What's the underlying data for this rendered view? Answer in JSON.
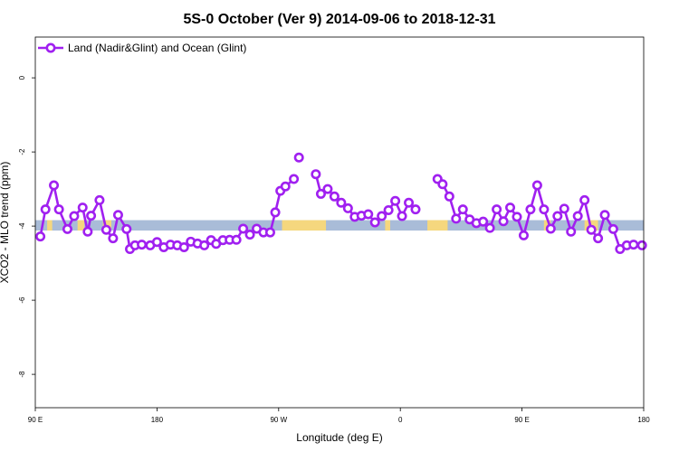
{
  "chart_data": {
    "type": "line",
    "title": "5S-0 October (Ver 9)   2014-09-06 to 2018-12-31",
    "xlabel": "Longitude (deg E)",
    "ylabel": "XCO2 - MLO trend (ppm)",
    "xlim": [
      90,
      450
    ],
    "ylim": [
      -8.9,
      1.1
    ],
    "x_ticks": [
      {
        "value": 90,
        "label": "90 E"
      },
      {
        "value": 162,
        "label": "180"
      },
      {
        "value": 234,
        "label": "90 W"
      },
      {
        "value": 306,
        "label": "0"
      },
      {
        "value": 378,
        "label": "90 E"
      },
      {
        "value": 450,
        "label": "180"
      }
    ],
    "y_ticks": [
      {
        "value": 0,
        "label": "0"
      },
      {
        "value": -2,
        "label": "-2"
      },
      {
        "value": -4,
        "label": "-4"
      },
      {
        "value": -6,
        "label": "-6"
      },
      {
        "value": -8,
        "label": "-8"
      }
    ],
    "legend": {
      "position": "top-left"
    },
    "series": [
      {
        "name": "Land (Nadir&Glint) and Ocean (Glint)",
        "color": "#a020f0",
        "points": [
          [
            93,
            -4.28
          ],
          [
            96,
            -3.55
          ],
          [
            101,
            -2.9
          ],
          [
            104,
            -3.55
          ],
          [
            109,
            -4.08
          ],
          [
            113,
            -3.73
          ],
          [
            118,
            -3.5
          ],
          [
            121,
            -4.15
          ],
          [
            123,
            -3.72
          ],
          [
            128,
            -3.3
          ],
          [
            132,
            -4.1
          ],
          [
            136,
            -4.33
          ],
          [
            139,
            -3.7
          ],
          [
            144,
            -4.08
          ],
          [
            146,
            -4.62
          ],
          [
            149,
            -4.52
          ],
          [
            153,
            -4.5
          ],
          [
            158,
            -4.52
          ],
          [
            162,
            -4.43
          ],
          [
            166,
            -4.57
          ],
          [
            170,
            -4.5
          ],
          [
            174,
            -4.52
          ],
          [
            178,
            -4.57
          ],
          [
            182,
            -4.42
          ],
          [
            186,
            -4.47
          ],
          [
            190,
            -4.52
          ],
          [
            194,
            -4.38
          ],
          [
            197,
            -4.48
          ],
          [
            201,
            -4.38
          ],
          [
            205,
            -4.37
          ],
          [
            209,
            -4.37
          ],
          [
            213,
            -4.07
          ],
          [
            217,
            -4.23
          ],
          [
            221,
            -4.07
          ],
          [
            225,
            -4.17
          ],
          [
            229,
            -4.17
          ],
          [
            232,
            -3.63
          ],
          [
            235,
            -3.05
          ],
          [
            238,
            -2.93
          ],
          [
            243,
            -2.73
          ],
          null,
          [
            246,
            -2.15
          ],
          null,
          [
            256,
            -2.6
          ],
          [
            259,
            -3.13
          ],
          [
            263,
            -3.0
          ],
          [
            267,
            -3.2
          ],
          [
            271,
            -3.37
          ],
          [
            275,
            -3.52
          ],
          [
            279,
            -3.75
          ],
          [
            283,
            -3.72
          ],
          [
            287,
            -3.68
          ],
          [
            291,
            -3.9
          ],
          [
            295,
            -3.73
          ],
          [
            299,
            -3.57
          ],
          [
            303,
            -3.32
          ],
          [
            307,
            -3.73
          ],
          [
            311,
            -3.37
          ],
          [
            315,
            -3.55
          ],
          null,
          [
            328,
            -2.73
          ],
          [
            331,
            -2.87
          ],
          [
            335,
            -3.2
          ],
          [
            339,
            -3.8
          ],
          [
            343,
            -3.55
          ],
          [
            347,
            -3.82
          ],
          [
            351,
            -3.92
          ],
          [
            355,
            -3.88
          ],
          [
            359,
            -4.05
          ],
          [
            363,
            -3.55
          ],
          [
            367,
            -3.87
          ],
          [
            371,
            -3.5
          ],
          [
            375,
            -3.75
          ],
          [
            379,
            -4.25
          ],
          [
            383,
            -3.55
          ],
          [
            387,
            -2.9
          ],
          [
            391,
            -3.55
          ],
          [
            395,
            -4.07
          ],
          [
            399,
            -3.73
          ],
          [
            403,
            -3.53
          ],
          [
            407,
            -4.15
          ],
          [
            411,
            -3.73
          ],
          [
            415,
            -3.3
          ],
          [
            419,
            -4.1
          ],
          [
            423,
            -4.33
          ],
          [
            427,
            -3.7
          ],
          [
            432,
            -4.08
          ],
          [
            436,
            -4.62
          ],
          [
            440,
            -4.52
          ],
          [
            444,
            -4.5
          ],
          [
            449,
            -4.52
          ]
        ]
      }
    ],
    "bands": {
      "y_center": -3.98,
      "y_half_height": 0.14,
      "ocean_color": "#a9bcd8",
      "land_color": "#f5d77e",
      "land_segments": [
        [
          97,
          100
        ],
        [
          115,
          119
        ],
        [
          130,
          135
        ],
        [
          236,
          262
        ],
        [
          297,
          300
        ],
        [
          322,
          334
        ],
        [
          391,
          395
        ],
        [
          415,
          423
        ]
      ]
    }
  }
}
